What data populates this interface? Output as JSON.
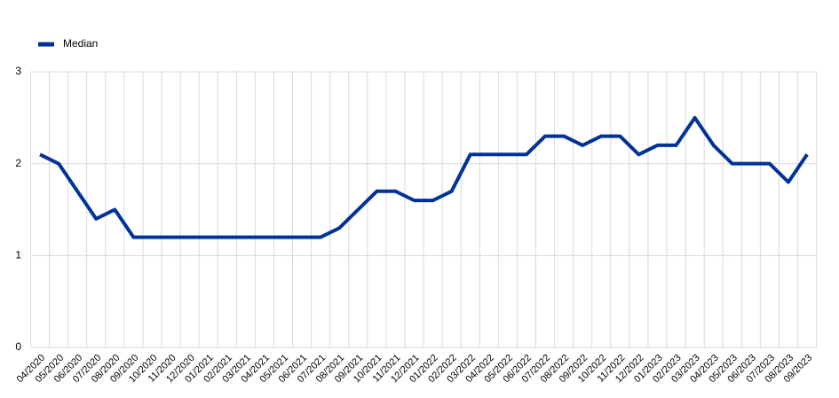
{
  "chart_data": {
    "type": "line",
    "categories": [
      "04/2020",
      "05/2020",
      "06/2020",
      "07/2020",
      "08/2020",
      "09/2020",
      "10/2020",
      "11/2020",
      "12/2020",
      "01/2021",
      "02/2021",
      "03/2021",
      "04/2021",
      "05/2021",
      "06/2021",
      "07/2021",
      "08/2021",
      "09/2021",
      "10/2021",
      "11/2021",
      "12/2021",
      "01/2022",
      "02/2022",
      "03/2022",
      "04/2022",
      "05/2022",
      "06/2022",
      "07/2022",
      "08/2022",
      "09/2022",
      "10/2022",
      "11/2022",
      "12/2022",
      "01/2023",
      "02/2023",
      "03/2023",
      "04/2023",
      "05/2023",
      "06/2023",
      "07/2023",
      "08/2023",
      "09/2023"
    ],
    "series": [
      {
        "name": "Median",
        "color": "#003299",
        "values": [
          2.1,
          2.0,
          1.7,
          1.4,
          1.5,
          1.2,
          1.2,
          1.2,
          1.2,
          1.2,
          1.2,
          1.2,
          1.2,
          1.2,
          1.2,
          1.2,
          1.3,
          1.5,
          1.7,
          1.7,
          1.6,
          1.6,
          1.7,
          2.1,
          2.1,
          2.1,
          2.1,
          2.3,
          2.3,
          2.2,
          2.3,
          2.3,
          2.1,
          2.2,
          2.2,
          2.5,
          2.2,
          2.0,
          2.0,
          2.0,
          1.8,
          2.1
        ]
      }
    ],
    "ylim": [
      0,
      3
    ],
    "yticks": [
      0,
      1,
      2,
      3
    ],
    "grid": true,
    "legend": "top-left"
  }
}
